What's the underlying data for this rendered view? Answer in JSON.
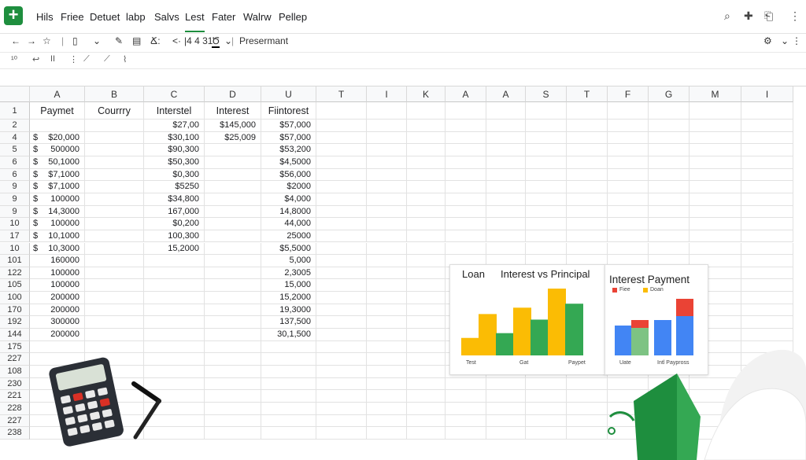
{
  "menu": {
    "items": [
      "Hils",
      "Friee",
      "Detuet",
      "labp",
      "Salvs",
      "Lest",
      "Fater",
      "Walrw",
      "Pellep"
    ],
    "active_index": 5
  },
  "top_right_icons": [
    "search-icon",
    "plus-icon",
    "share-icon",
    "more-vert-icon"
  ],
  "toolbar": {
    "items": [
      "←",
      "→",
      "☆",
      "▯",
      "⌄",
      "✎",
      "▤",
      "Ճ:",
      "<·",
      "|4 4 31",
      "Ծ",
      "⌄"
    ],
    "present_label": "Presermant"
  },
  "formula_bar": {
    "items": [
      "¹⁰",
      "↩",
      "II",
      "⋮",
      "⟋",
      "⟋",
      "⌇"
    ]
  },
  "grid": {
    "column_headers": [
      "A",
      "B",
      "C",
      "D",
      "U",
      "T",
      "I",
      "K",
      "A",
      "A",
      "S",
      "T",
      "F",
      "G",
      "M",
      "I"
    ],
    "row_numbers": [
      "1",
      "2",
      "4",
      "5",
      "6",
      "6",
      "9",
      "9",
      "9",
      "10",
      "17",
      "10",
      "101",
      "122",
      "105",
      "100",
      "170",
      "192",
      "144",
      "175",
      "227",
      "108",
      "230",
      "221",
      "228",
      "227",
      "238"
    ],
    "header_row": [
      "Paymet",
      "Courrry",
      "Interstel",
      "Interest",
      "Fiintorest"
    ],
    "rows": [
      {
        "a_sign": "",
        "a": "",
        "c": "$27,00",
        "d": "$145,000",
        "u": "$57,000"
      },
      {
        "a_sign": "$",
        "a": "$20,000",
        "c": "$30,100",
        "d": "$25,009",
        "u": "$57,000"
      },
      {
        "a_sign": "$",
        "a": "500000",
        "c": "$90,300",
        "d": "",
        "u": "$53,200"
      },
      {
        "a_sign": "$",
        "a": "50,1000",
        "c": "$50,300",
        "d": "",
        "u": "$4,5000"
      },
      {
        "a_sign": "$",
        "a": "$7,1000",
        "c": "$0,300",
        "d": "",
        "u": "$56,000"
      },
      {
        "a_sign": "$",
        "a": "$7,1000",
        "c": "$5250",
        "d": "",
        "u": "$2000"
      },
      {
        "a_sign": "$",
        "a": "100000",
        "c": "$34,800",
        "d": "",
        "u": "$4,000"
      },
      {
        "a_sign": "$",
        "a": "14,3000",
        "c": "167,000",
        "d": "",
        "u": "14,8000"
      },
      {
        "a_sign": "$",
        "a": "100000",
        "c": "$0,200",
        "d": "",
        "u": "44,000"
      },
      {
        "a_sign": "$",
        "a": "10,1000",
        "c": "100,300",
        "d": "",
        "u": "25000"
      },
      {
        "a_sign": "$",
        "a": "10,3000",
        "c": "15,2000",
        "d": "",
        "u": "$5,5000"
      },
      {
        "a_sign": "",
        "a": "160000",
        "c": "",
        "d": "",
        "u": "5,000"
      },
      {
        "a_sign": "",
        "a": "100000",
        "c": "",
        "d": "",
        "u": "2,3005"
      },
      {
        "a_sign": "",
        "a": "100000",
        "c": "",
        "d": "",
        "u": "15,000"
      },
      {
        "a_sign": "",
        "a": "200000",
        "c": "",
        "d": "",
        "u": "15,2000"
      },
      {
        "a_sign": "",
        "a": "200000",
        "c": "",
        "d": "",
        "u": "19,3000"
      },
      {
        "a_sign": "",
        "a": "300000",
        "c": "",
        "d": "",
        "u": "137,500"
      },
      {
        "a_sign": "",
        "a": "200000",
        "c": "",
        "d": "",
        "u": "30,1,500"
      }
    ]
  },
  "chart_data": [
    {
      "type": "bar",
      "title_left": "Loan",
      "title": "Interest vs Principal",
      "x_tick_labels": [
        "Test",
        "Gat",
        "Paypet"
      ],
      "series_colors": [
        "#fbbc04",
        "#34a853"
      ],
      "values": [
        22,
        52,
        28,
        60,
        45,
        84,
        65
      ],
      "bar_colors": [
        "#fbbc04",
        "#fbbc04",
        "#34a853",
        "#fbbc04",
        "#34a853",
        "#fbbc04",
        "#34a853"
      ]
    },
    {
      "type": "bar",
      "title": "Interest Payment",
      "legend": [
        {
          "name": "Fiee",
          "color": "#ea4335"
        },
        {
          "name": "Doan",
          "color": "#fbbc04"
        }
      ],
      "x_tick_labels": [
        "Uate",
        "Intl Paypross"
      ],
      "stacks": [
        {
          "blue": 38,
          "red": 0
        },
        {
          "blue": 0,
          "green": 35,
          "red": 10
        },
        {
          "blue": 45,
          "red": 0
        },
        {
          "blue": 50,
          "red": 22
        }
      ]
    }
  ]
}
